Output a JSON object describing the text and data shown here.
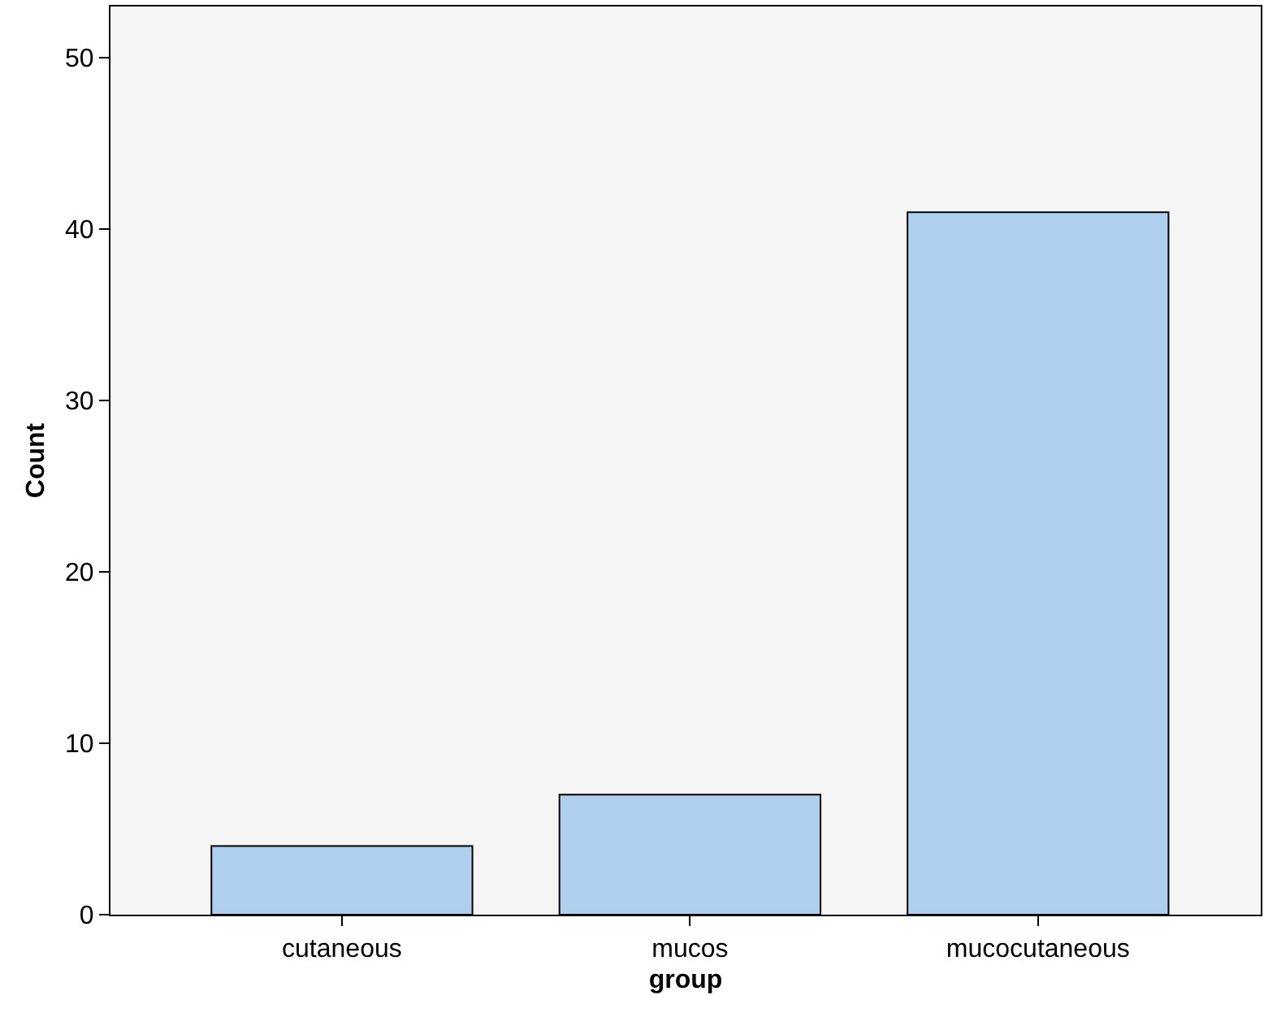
{
  "chart_data": {
    "type": "bar",
    "xlabel": "group",
    "ylabel": "Count",
    "categories": [
      "cutaneous",
      "mucos",
      "mucocutaneous"
    ],
    "values": [
      4,
      7,
      41
    ],
    "color": "#aecfee",
    "ylim": [
      0,
      53
    ],
    "yticks": [
      0,
      10,
      20,
      30,
      40,
      50
    ],
    "grid": false,
    "legend": false
  }
}
